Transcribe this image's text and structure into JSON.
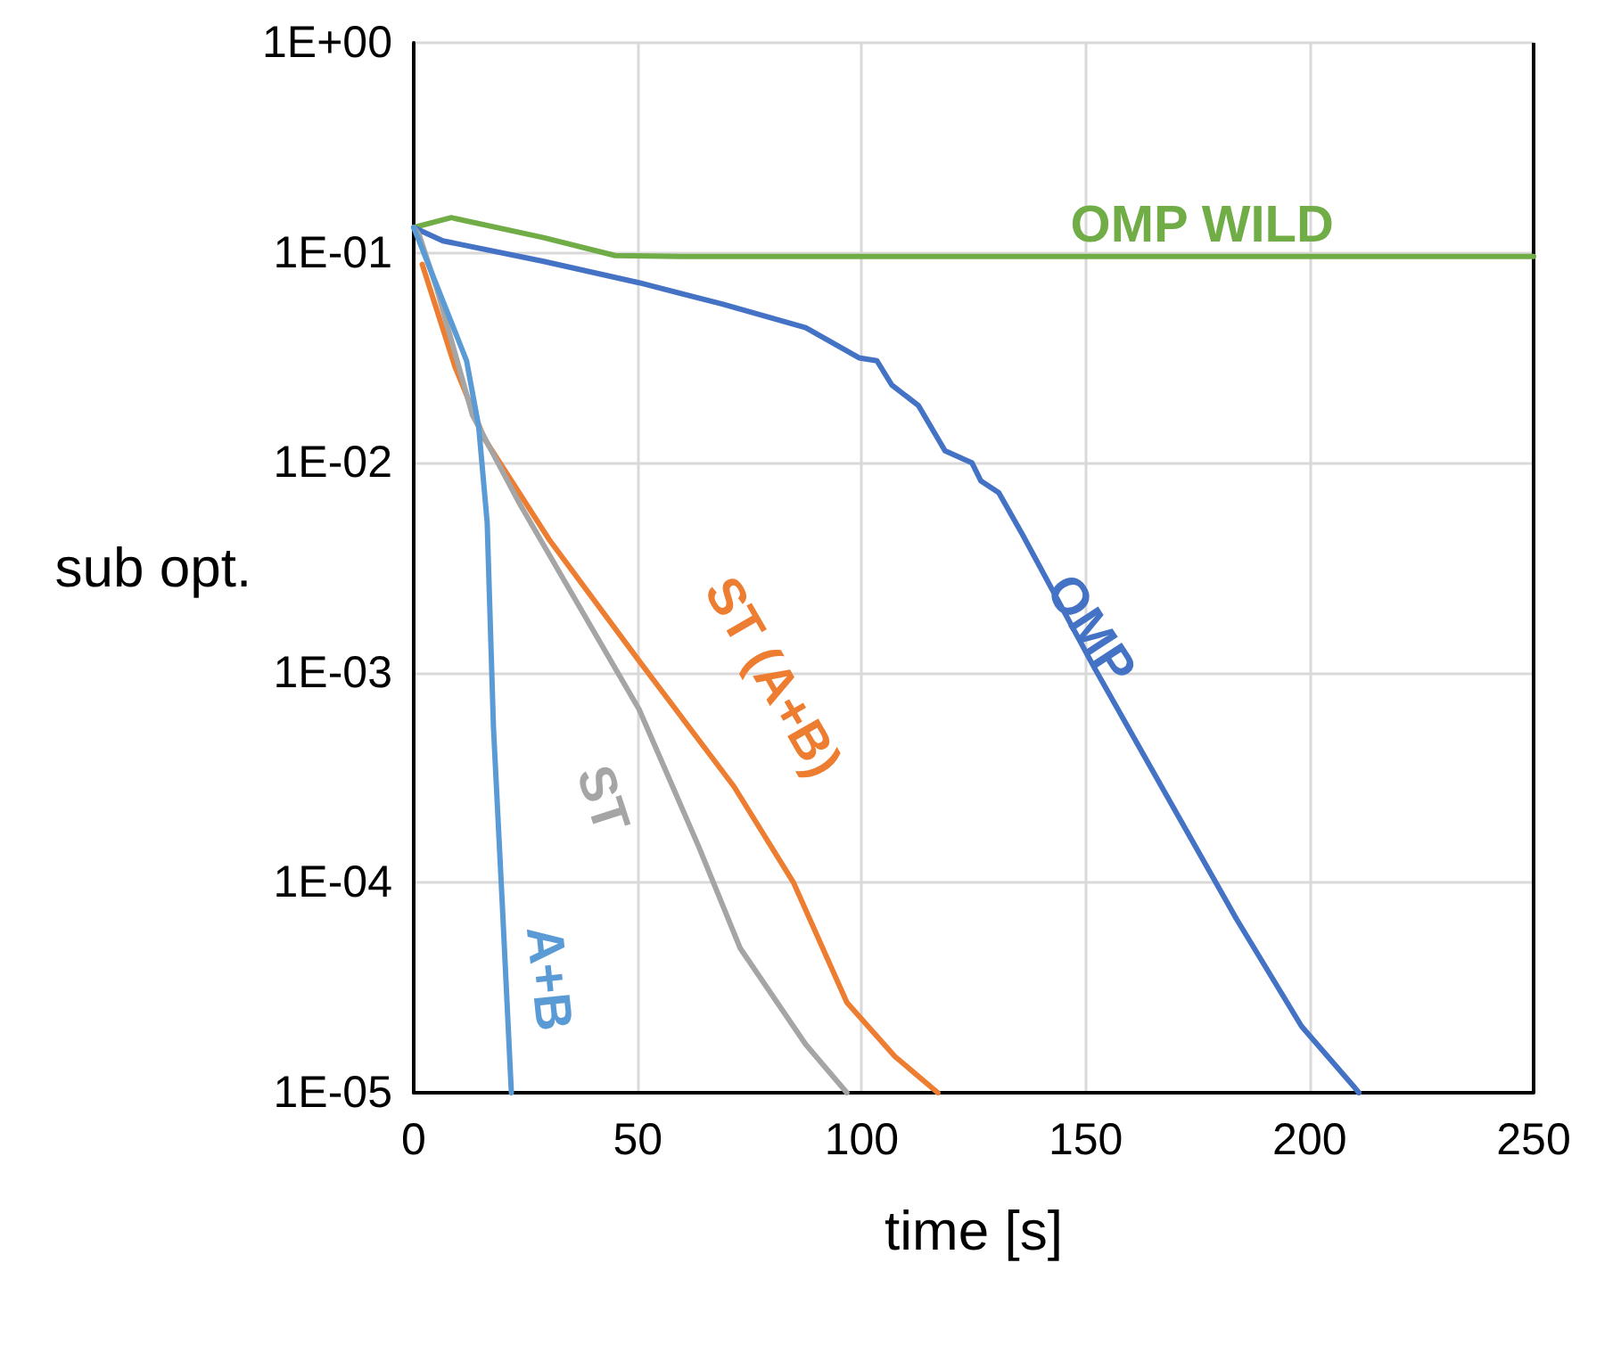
{
  "chart_data": {
    "type": "line",
    "xlabel": "time [s]",
    "ylabel": "sub opt.",
    "log": "y",
    "grid": true,
    "legend": false,
    "marker": "none",
    "line_style": "solid",
    "xlim": [
      0,
      250
    ],
    "xticks": [
      0,
      50,
      100,
      150,
      200,
      250
    ],
    "ylim": [
      1e-05,
      1
    ],
    "yticks": [
      {
        "value": 1e-05,
        "label": "1E-05"
      },
      {
        "value": 0.0001,
        "label": "1E-04"
      },
      {
        "value": 0.001,
        "label": "1E-03"
      },
      {
        "value": 0.01,
        "label": "1E-02"
      },
      {
        "value": 0.1,
        "label": "1E-01"
      },
      {
        "value": 1,
        "label": "1E+00"
      }
    ],
    "series": [
      {
        "name": "OMP WILD",
        "color": "#70ad47",
        "x": [
          0,
          8.4,
          29,
          45,
          60,
          100,
          150,
          200,
          250
        ],
        "values": [
          0.132,
          0.147,
          0.118,
          0.097,
          0.096,
          0.096,
          0.096,
          0.096,
          0.096
        ]
      },
      {
        "name": "OMP",
        "color": "#4472c4",
        "x": [
          0,
          6.5,
          29,
          50.3,
          68.9,
          87.5,
          99.4,
          103.4,
          106.7,
          112.7,
          118.6,
          124.6,
          126.6,
          130.6,
          135.9,
          151.8,
          167.7,
          183.6,
          198.2,
          210.2,
          211
        ],
        "values": [
          0.132,
          0.114,
          0.091,
          0.072,
          0.057,
          0.044,
          0.0316,
          0.0306,
          0.0235,
          0.0187,
          0.0114,
          0.01,
          0.0082,
          0.0072,
          0.00455,
          0.00107,
          0.000269,
          6.76e-05,
          2.07e-05,
          1.05e-05,
          1e-05
        ]
      },
      {
        "name": "ST (A+B)",
        "color": "#ed7d31",
        "x": [
          1.9,
          9.2,
          15.8,
          30.4,
          50.3,
          71.5,
          84.8,
          96.7,
          107.4,
          117
        ],
        "values": [
          0.088,
          0.0287,
          0.013,
          0.00426,
          0.00114,
          0.000287,
          0.0001,
          2.69e-05,
          1.49e-05,
          1e-05
        ]
      },
      {
        "name": "ST",
        "color": "#a5a5a5",
        "x": [
          0,
          1.2,
          5.2,
          13.1,
          23.8,
          37,
          50.3,
          63.6,
          72.9,
          87.5,
          96.7
        ],
        "values": [
          0.132,
          0.122,
          0.067,
          0.0169,
          0.0063,
          0.00206,
          0.00067,
          0.000149,
          4.87e-05,
          1.7e-05,
          1e-05
        ]
      },
      {
        "name": "A+B",
        "color": "#5b9bd5",
        "x": [
          0,
          6.5,
          11.8,
          14.5,
          16.4,
          17.8,
          19.8,
          21.8
        ],
        "values": [
          0.132,
          0.059,
          0.0306,
          0.0149,
          0.00519,
          0.00055,
          7.7e-05,
          1e-05
        ]
      }
    ]
  }
}
